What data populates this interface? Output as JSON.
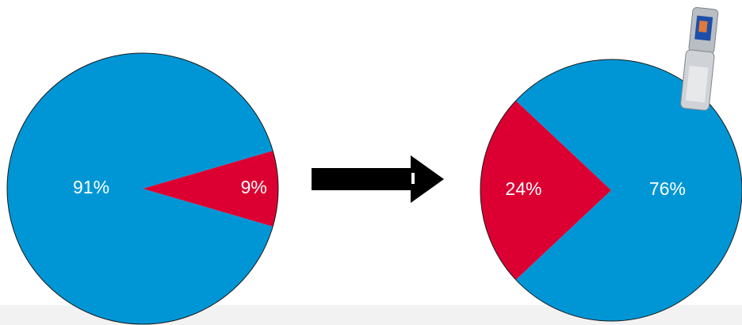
{
  "chart_data": [
    {
      "type": "pie",
      "values": [
        91,
        9
      ],
      "value_labels": [
        "91%",
        "9%"
      ],
      "colors": [
        "#0096d6",
        "#dc0032"
      ]
    },
    {
      "type": "pie",
      "values": [
        76,
        24
      ],
      "value_labels": [
        "76%",
        "24%"
      ],
      "colors": [
        "#0096d6",
        "#dc0032"
      ]
    }
  ]
}
